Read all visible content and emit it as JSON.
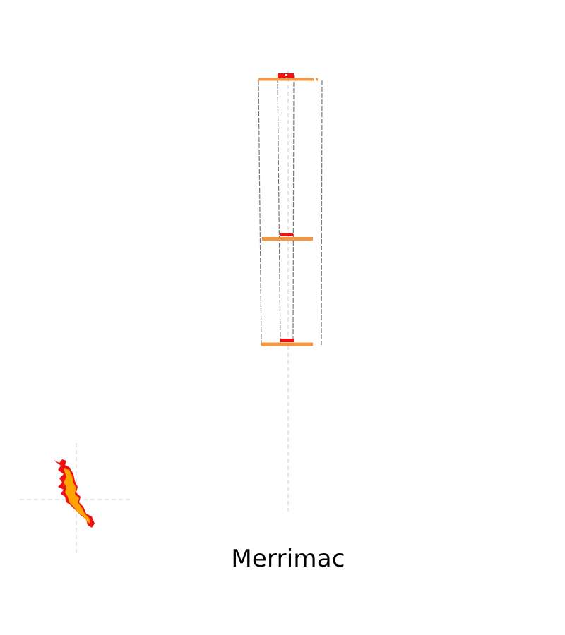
{
  "title": "Merrimac",
  "colors": {
    "background": "#ffffff",
    "floor_line": "#f7963c",
    "marker": "#ee1111",
    "wall_line": "#777777",
    "axis_line": "#d9d9d9",
    "locator_fill": "#ffa400",
    "locator_outline": "#ee1111",
    "label_text": "#000000"
  },
  "icons": {
    "building_section": "building-section-icon",
    "locator_map": "locator-map-icon"
  }
}
